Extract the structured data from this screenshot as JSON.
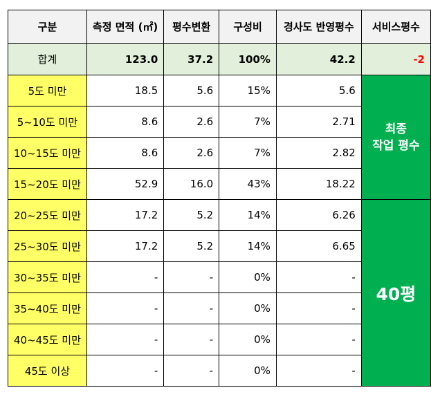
{
  "headers": [
    "구분",
    "측정 면적 (㎡)",
    "평수변환",
    "구성비",
    "경사도 반영평수",
    "서비스평수"
  ],
  "total": {
    "label": "합계",
    "area": "123.0",
    "pyeong": "37.2",
    "ratio": "100%",
    "slope": "42.2",
    "service": "-2"
  },
  "rows": [
    {
      "label": "5도 미만",
      "area": "18.5",
      "pyeong": "5.6",
      "ratio": "15%",
      "slope": "5.6"
    },
    {
      "label": "5~10도 미만",
      "area": "8.6",
      "pyeong": "2.6",
      "ratio": "7%",
      "slope": "2.71"
    },
    {
      "label": "10~15도 미만",
      "area": "8.6",
      "pyeong": "2.6",
      "ratio": "7%",
      "slope": "2.82"
    },
    {
      "label": "15~20도 미만",
      "area": "52.9",
      "pyeong": "16.0",
      "ratio": "43%",
      "slope": "18.22"
    },
    {
      "label": "20~25도 미만",
      "area": "17.2",
      "pyeong": "5.2",
      "ratio": "14%",
      "slope": "6.26"
    },
    {
      "label": "25~30도 미만",
      "area": "17.2",
      "pyeong": "5.2",
      "ratio": "14%",
      "slope": "6.65"
    },
    {
      "label": "30~35도 미만",
      "area": "-",
      "pyeong": "-",
      "ratio": "0%",
      "slope": "-"
    },
    {
      "label": "35~40도 미만",
      "area": "-",
      "pyeong": "-",
      "ratio": "0%",
      "slope": "-"
    },
    {
      "label": "40~45도 미만",
      "area": "-",
      "pyeong": "-",
      "ratio": "0%",
      "slope": "-"
    },
    {
      "label": "45도 이상",
      "area": "-",
      "pyeong": "-",
      "ratio": "0%",
      "slope": "-"
    }
  ],
  "final_label_line1": "최종",
  "final_label_line2": "작업 평수",
  "final_value": "40평",
  "colors": {
    "header_bg": "#f2f2f2",
    "total_bg": "#e2efda",
    "label_bg": "#ffff66",
    "green": "#00b050",
    "negative": "#ff0000"
  }
}
